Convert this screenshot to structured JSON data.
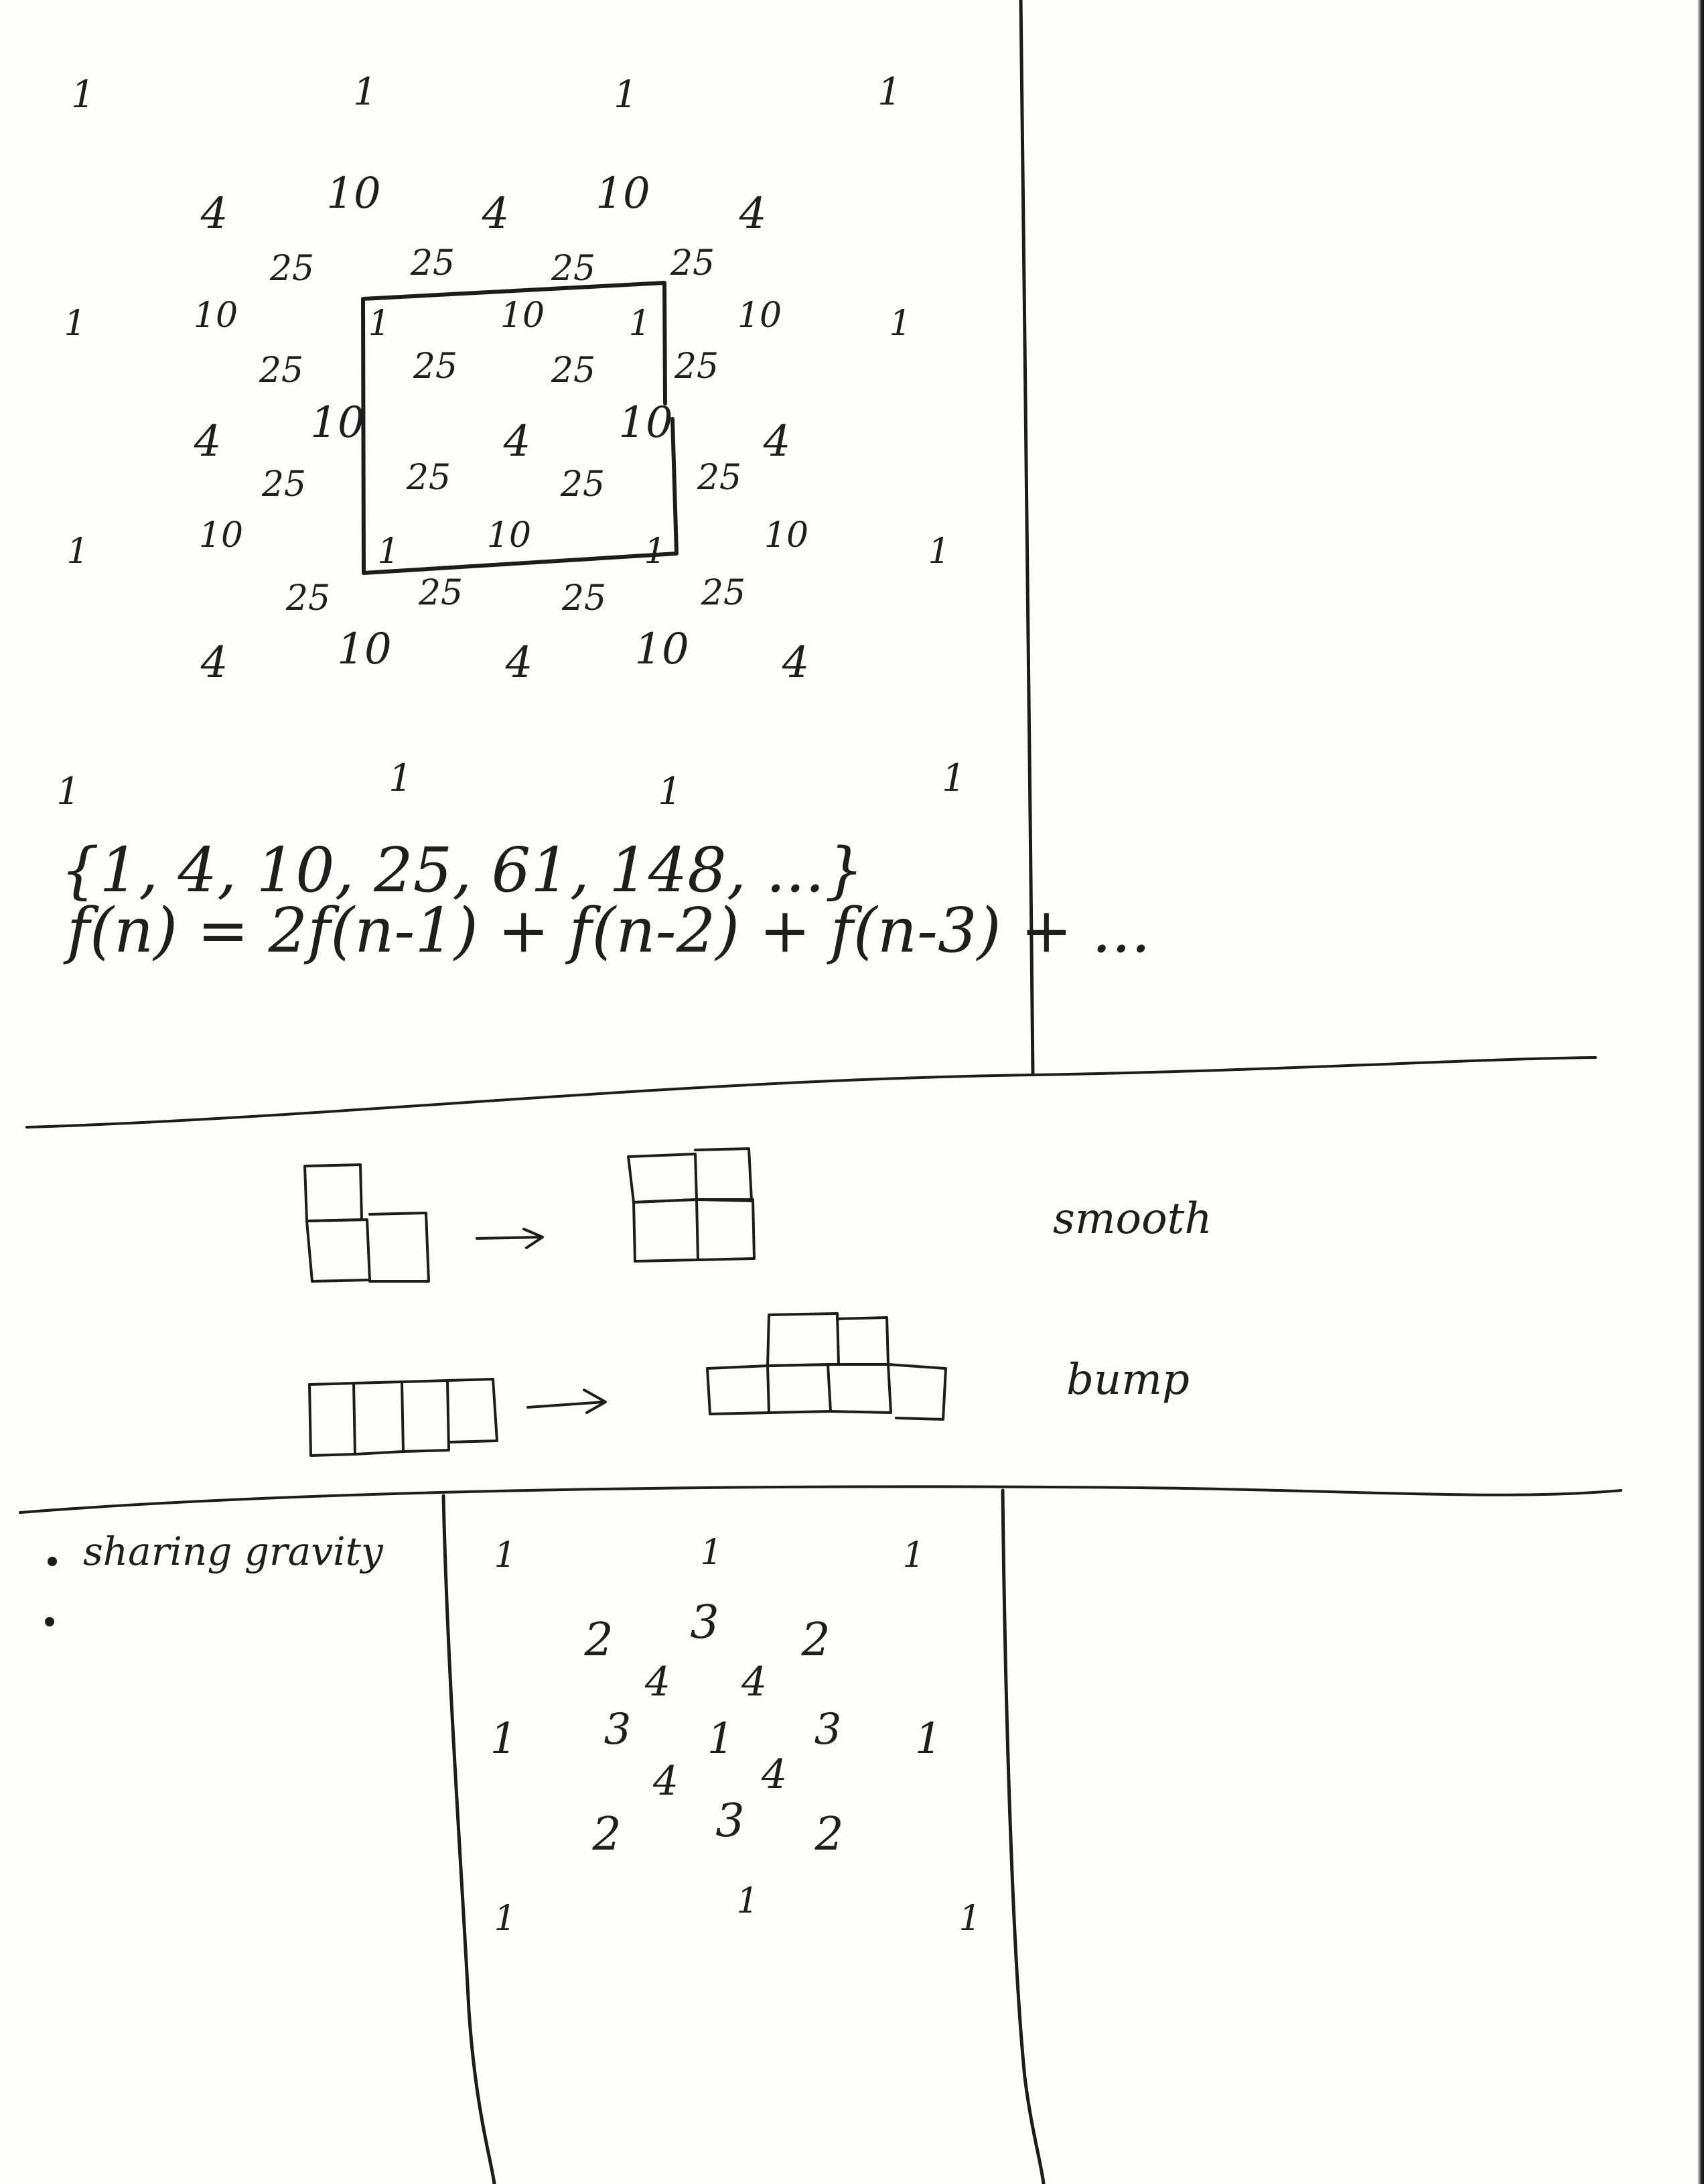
{
  "grid1": {
    "rows": [
      [
        "1",
        "1",
        "1",
        "1"
      ],
      [
        "4",
        "10",
        "4",
        "10",
        "4"
      ],
      [
        "25",
        "25",
        "25",
        "25"
      ],
      [
        "1",
        "10",
        "1",
        "10",
        "1",
        "10",
        "1"
      ],
      [
        "25",
        "25",
        "25",
        "25"
      ],
      [
        "4",
        "10",
        "4",
        "10",
        "4"
      ],
      [
        "25",
        "25",
        "25",
        "25"
      ],
      [
        "1",
        "10",
        "1",
        "10",
        "1",
        "10",
        "1"
      ],
      [
        "25",
        "25",
        "25",
        "25"
      ],
      [
        "4",
        "10",
        "4",
        "10",
        "4"
      ],
      [
        "1",
        "1",
        "1",
        "1"
      ]
    ]
  },
  "sequence": {
    "set_text": "{1, 4, 10, 25, 61, 148, ...}",
    "formula_text": "f(n) = 2f(n-1) + f(n-2) + f(n-3) + ..."
  },
  "transforms": {
    "smooth_label": "smooth",
    "bump_label": "bump"
  },
  "notes": {
    "bullet1": "sharing gravity",
    "bullet2": ""
  },
  "grid2": {
    "rows": [
      [
        "1",
        "1",
        "1"
      ],
      [
        "2",
        "3",
        "2"
      ],
      [
        "4",
        "4"
      ],
      [
        "1",
        "3",
        "1",
        "3",
        "1"
      ],
      [
        "4",
        "4"
      ],
      [
        "2",
        "3",
        "2"
      ],
      [
        "1",
        "1",
        "1"
      ]
    ]
  }
}
